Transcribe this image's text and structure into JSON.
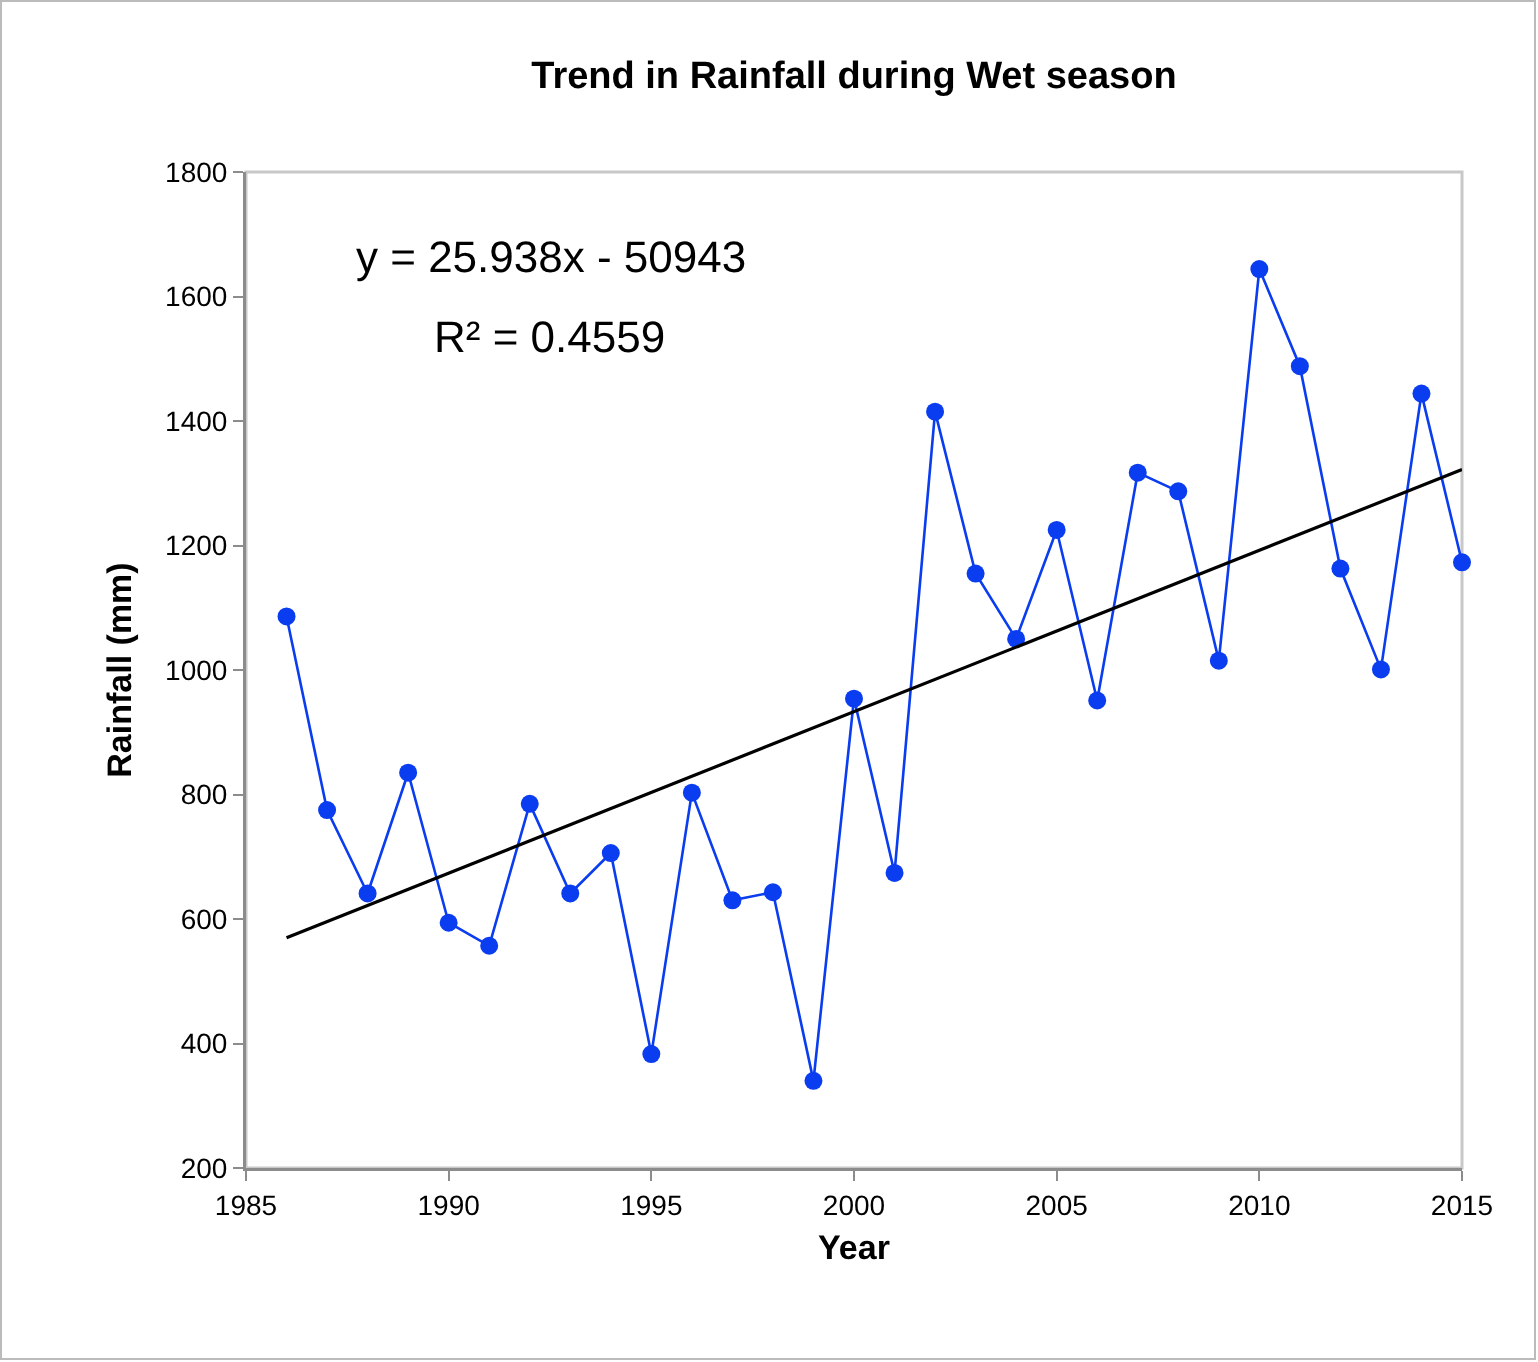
{
  "chart_data": {
    "type": "line",
    "title": "Trend in Rainfall during Wet season",
    "xlabel": "Year",
    "ylabel": "Rainfall (mm)",
    "x": [
      1986,
      1987,
      1988,
      1989,
      1990,
      1991,
      1992,
      1993,
      1994,
      1995,
      1996,
      1997,
      1998,
      1999,
      2000,
      2001,
      2002,
      2003,
      2004,
      2005,
      2006,
      2007,
      2008,
      2009,
      2010,
      2011,
      2012,
      2013,
      2014,
      2015
    ],
    "series": [
      {
        "color": "#0a3cf0",
        "values": [
          1086,
          775,
          641,
          835,
          594,
          557,
          785,
          641,
          706,
          383,
          803,
          630,
          643,
          340,
          954,
          674,
          1415,
          1155,
          1050,
          1225,
          951,
          1317,
          1287,
          1015,
          1644,
          1488,
          1163,
          1001,
          1444,
          1173
        ]
      },
      {
        "type": "line",
        "color": "#000000",
        "marker": "none",
        "x": [
          1986,
          2015
        ],
        "values": [
          570,
          1322
        ]
      }
    ],
    "xlim": [
      1985,
      2015
    ],
    "xticks": [
      1985,
      1990,
      1995,
      2000,
      2005,
      2010,
      2015
    ],
    "ylim": [
      200,
      1800
    ],
    "yticks": [
      200,
      400,
      600,
      800,
      1000,
      1200,
      1400,
      1600,
      1800
    ],
    "grid": false,
    "marker": "circle",
    "line_style": "solid",
    "annotations": [
      "y = 25.938x - 50943",
      "R² = 0.4559"
    ]
  }
}
